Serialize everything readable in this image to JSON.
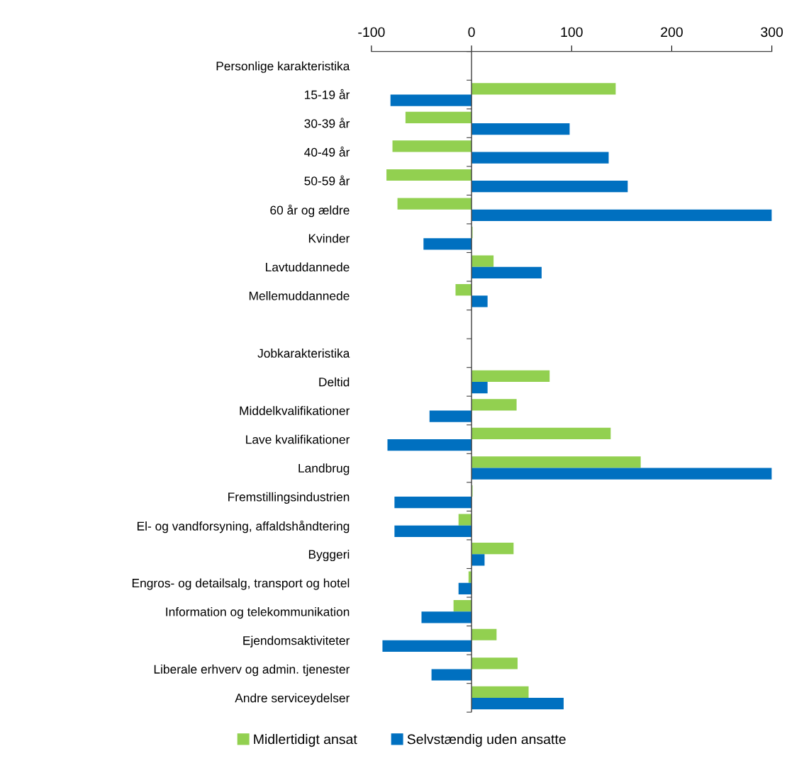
{
  "chart_data": {
    "type": "bar",
    "orientation": "horizontal",
    "categories": [
      "Personlige karakteristika",
      "15-19 år",
      "30-39 år",
      "40-49 år",
      "50-59 år",
      "60 år og ældre",
      "Kvinder",
      "Lavtuddannede",
      "Mellemuddannede",
      null,
      "Jobkarakteristika",
      "Deltid",
      "Middelkvalifikationer",
      "Lave kvalifikationer",
      "Landbrug",
      "Fremstillingsindustrien",
      "El- og vandforsyning, affaldshåndtering",
      "Byggeri",
      "Engros- og detailsalg, transport og hotel",
      "Information og telekommunikation",
      "Ejendomsaktiviteter",
      "Liberale erhverv og admin. tjenester",
      "Andre serviceydelser"
    ],
    "series": [
      {
        "name": "Midlertidigt ansat",
        "color": "#92d050",
        "values": [
          null,
          144,
          -66,
          -79,
          -85,
          -74,
          1,
          22,
          -16,
          null,
          null,
          78,
          45,
          139,
          169,
          1,
          -13,
          42,
          -3,
          -18,
          25,
          46,
          57
        ]
      },
      {
        "name": "Selvstændig uden ansatte",
        "color": "#0070c0",
        "values": [
          null,
          -81,
          98,
          137,
          156,
          300,
          -48,
          70,
          16,
          null,
          null,
          16,
          -42,
          -84,
          300,
          -77,
          -77,
          13,
          -13,
          -50,
          -89,
          -40,
          92
        ]
      }
    ],
    "xlim": [
      -100,
      300
    ],
    "xticks": [
      -100,
      0,
      100,
      200,
      300
    ],
    "grid": false,
    "legend": "bottom",
    "ref_lines": [
      {
        "axis": "x",
        "value": 0,
        "color": "#404040"
      }
    ]
  }
}
